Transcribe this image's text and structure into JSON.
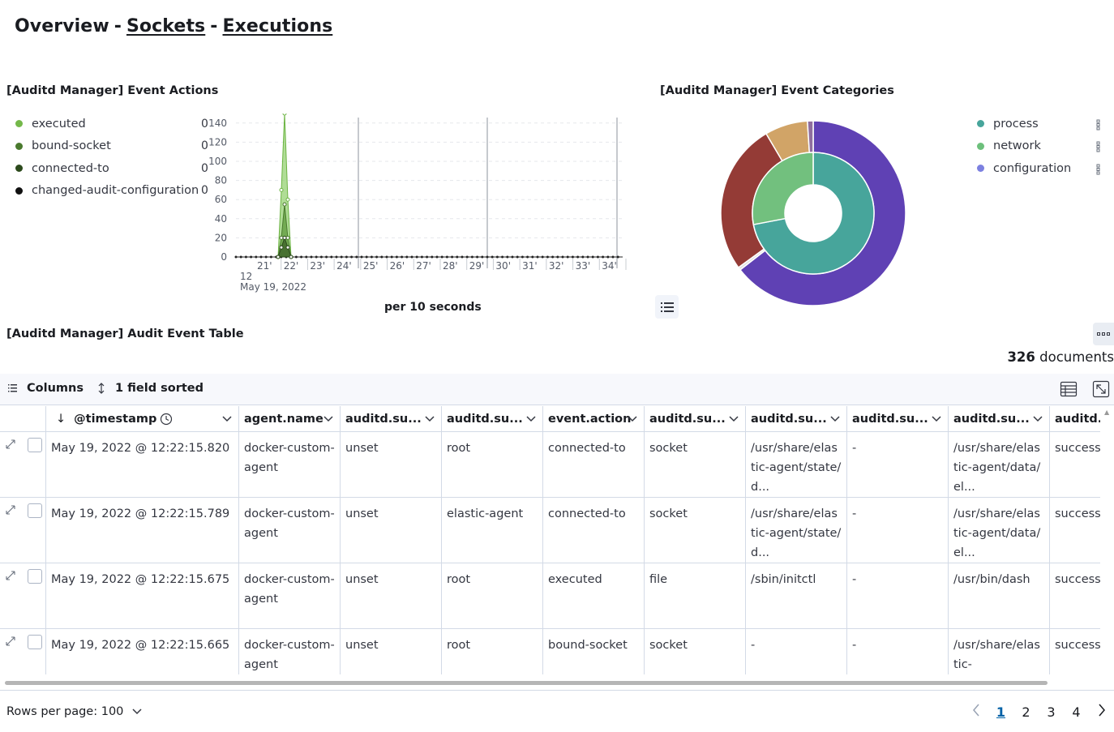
{
  "breadcrumb": {
    "root": "Overview",
    "sep": "-",
    "sockets": "Sockets",
    "executions": "Executions"
  },
  "event_actions": {
    "title": "[Auditd Manager] Event Actions",
    "legend": [
      {
        "label": "executed",
        "color": "#74b84a",
        "value": "0"
      },
      {
        "label": "bound-socket",
        "color": "#4a7a2e",
        "value": "0"
      },
      {
        "label": "connected-to",
        "color": "#2c4a1c",
        "value": "0"
      },
      {
        "label": "changed-audit-configuration",
        "color": "#111111",
        "value": "0"
      }
    ],
    "chart_data": {
      "type": "area",
      "title": "[Auditd Manager] Event Actions",
      "xlabel": "per 10 seconds",
      "ylabel": "",
      "ylim": [
        0,
        150
      ],
      "yticks": [
        "0",
        "20",
        "40",
        "60",
        "80",
        "100",
        "120",
        "140"
      ],
      "xticks": [
        "21'",
        "22'",
        "23'",
        "24'",
        "25'",
        "26'",
        "27'",
        "28'",
        "29'",
        "30'",
        "31'",
        "32'",
        "33'",
        "34'"
      ],
      "xsub_1": "12",
      "xsub_2": "May 19, 2022",
      "series": [
        {
          "name": "executed",
          "x": [
            "21'",
            "21' 50s",
            "22'",
            "22' 10s",
            "22' 20s"
          ],
          "values": [
            0,
            70,
            150,
            60,
            0
          ]
        },
        {
          "name": "bound-socket",
          "x": [
            "21'",
            "21' 50s",
            "22'",
            "22' 10s",
            "22' 20s"
          ],
          "values": [
            0,
            20,
            55,
            20,
            0
          ]
        },
        {
          "name": "connected-to",
          "x": [
            "21'",
            "21' 50s",
            "22'",
            "22' 10s",
            "22' 20s"
          ],
          "values": [
            0,
            10,
            20,
            10,
            0
          ]
        },
        {
          "name": "changed-audit-configuration",
          "x": [
            "21'",
            "22'"
          ],
          "values": [
            0,
            0
          ]
        }
      ]
    },
    "x_title": "per 10 seconds"
  },
  "event_categories": {
    "title": "[Auditd Manager] Event Categories",
    "legend": [
      {
        "label": "process",
        "color": "#47a59b"
      },
      {
        "label": "network",
        "color": "#6dc07c"
      },
      {
        "label": "configuration",
        "color": "#7c80e0"
      }
    ],
    "chart_data": {
      "type": "pie",
      "title": "[Auditd Manager] Event Categories",
      "inner": [
        {
          "name": "process",
          "value": 72,
          "color": "#47a59b"
        },
        {
          "name": "network",
          "value": 28,
          "color": "#72c07e"
        }
      ],
      "outer": [
        {
          "name": "",
          "value": 64.5,
          "color": "#5f41b4"
        },
        {
          "name": "",
          "value": 0.5,
          "color": "#e3e3e3"
        },
        {
          "name": "",
          "value": 26.5,
          "color": "#943b36"
        },
        {
          "name": "",
          "value": 7.5,
          "color": "#d1a467"
        },
        {
          "name": "",
          "value": 1,
          "color": "#8f6e9e"
        }
      ]
    }
  },
  "table": {
    "title": "[Auditd Manager] Audit Event Table",
    "doc_count": "326",
    "doc_label": "documents",
    "toolbar": {
      "columns": "Columns",
      "sorted": "1 field sorted"
    },
    "headers": [
      "@timestamp",
      "agent.name",
      "auditd.su...",
      "auditd.su...",
      "event.action",
      "auditd.su...",
      "auditd.su...",
      "auditd.su...",
      "auditd.su...",
      "auditd.r"
    ],
    "rows": [
      [
        "May 19, 2022 @ 12:22:15.820",
        "docker-custom-agent",
        "unset",
        "root",
        "connected-to",
        "socket",
        "/usr/share/elastic-agent/state/d...",
        "-",
        "/usr/share/elastic-agent/data/el...",
        "success"
      ],
      [
        "May 19, 2022 @ 12:22:15.789",
        "docker-custom-agent",
        "unset",
        "elastic-agent",
        "connected-to",
        "socket",
        "/usr/share/elastic-agent/state/d...",
        "-",
        "/usr/share/elastic-agent/data/el...",
        "success"
      ],
      [
        "May 19, 2022 @ 12:22:15.675",
        "docker-custom-agent",
        "unset",
        "root",
        "executed",
        "file",
        "/sbin/initctl",
        "-",
        "/usr/bin/dash",
        "success"
      ],
      [
        "May 19, 2022 @ 12:22:15.665",
        "docker-custom-agent",
        "unset",
        "root",
        "bound-socket",
        "socket",
        "-",
        "-",
        "/usr/share/elastic-",
        "success"
      ]
    ]
  },
  "footer": {
    "rows_per_page": "Rows per page: 100",
    "pages": [
      "1",
      "2",
      "3",
      "4"
    ],
    "active_page": "1"
  }
}
